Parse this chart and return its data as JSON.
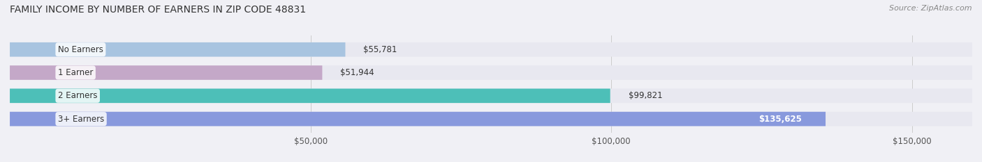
{
  "title": "FAMILY INCOME BY NUMBER OF EARNERS IN ZIP CODE 48831",
  "source": "Source: ZipAtlas.com",
  "categories": [
    "No Earners",
    "1 Earner",
    "2 Earners",
    "3+ Earners"
  ],
  "values": [
    55781,
    51944,
    99821,
    135625
  ],
  "bar_colors": [
    "#a8c4e0",
    "#c4a8c8",
    "#4dbfb8",
    "#8899dd"
  ],
  "bar_edge_colors": [
    "#a8c4e0",
    "#c4a8c8",
    "#4dbfb8",
    "#8899dd"
  ],
  "value_labels": [
    "$55,781",
    "$51,944",
    "$99,821",
    "$135,625"
  ],
  "value_label_colors": [
    "#333333",
    "#333333",
    "#333333",
    "#ffffff"
  ],
  "bg_color": "#f0f0f5",
  "bar_bg_color": "#e8e8f0",
  "xlim": [
    0,
    160000
  ],
  "xticks": [
    50000,
    100000,
    150000
  ],
  "xtick_labels": [
    "$50,000",
    "$100,000",
    "$150,000"
  ],
  "figsize": [
    14.06,
    2.33
  ],
  "dpi": 100
}
